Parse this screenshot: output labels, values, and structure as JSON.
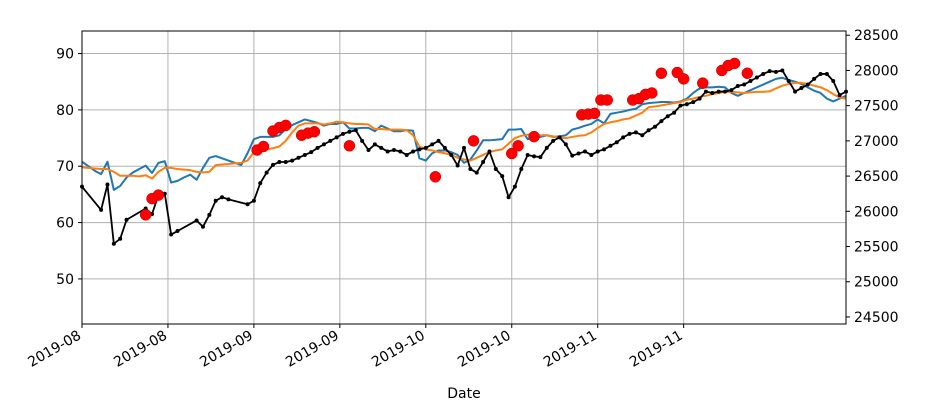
{
  "chart_data": {
    "type": "line",
    "title": "",
    "xlabel": "Date",
    "ylabel": "",
    "ylabel_right": "",
    "grid": true,
    "x_range": [
      0,
      120
    ],
    "ylim": [
      42,
      94
    ],
    "ylim_right": [
      24400,
      28560
    ],
    "x_ticks": [
      {
        "x": 0,
        "label": "2019-08"
      },
      {
        "x": 13.5,
        "label": "2019-08"
      },
      {
        "x": 27,
        "label": "2019-09"
      },
      {
        "x": 40.5,
        "label": "2019-09"
      },
      {
        "x": 54,
        "label": "2019-10"
      },
      {
        "x": 67.5,
        "label": "2019-10"
      },
      {
        "x": 81,
        "label": "2019-11"
      },
      {
        "x": 94.5,
        "label": "2019-11"
      }
    ],
    "y_ticks_left": [
      50,
      60,
      70,
      80,
      90
    ],
    "y_ticks_right": [
      24500,
      25000,
      25500,
      26000,
      26500,
      27000,
      27500,
      28000,
      28500
    ],
    "colors": {
      "blue": "#1f77b4",
      "orange": "#ff7f0e",
      "black": "#000000",
      "red": "#ff0000",
      "grid": "#b0b0b0"
    },
    "series": [
      {
        "axis": "left",
        "color": "#1f77b4",
        "x": [
          0,
          1,
          2,
          3,
          4,
          5,
          6,
          7,
          8,
          9,
          10,
          11,
          12,
          13,
          14,
          15,
          16,
          17,
          18,
          19,
          20,
          21,
          22,
          23,
          24,
          25,
          26,
          27,
          28,
          29,
          30,
          31,
          32,
          33,
          34,
          35,
          36,
          37,
          38,
          39,
          40,
          41,
          42,
          43,
          44,
          45,
          46,
          47,
          48,
          49,
          50,
          51,
          52,
          53,
          54,
          55,
          56,
          57,
          58,
          59,
          60,
          61,
          62,
          63,
          64,
          65,
          66,
          67,
          68,
          69,
          70,
          71,
          72,
          73,
          74,
          75,
          76,
          77,
          78,
          79,
          80,
          81,
          82,
          83,
          84,
          85,
          86,
          87,
          88,
          89,
          90,
          91,
          92,
          93,
          94,
          95,
          96,
          97,
          98,
          99,
          100,
          101,
          102,
          103,
          104,
          105,
          106,
          107,
          108,
          109,
          110,
          111,
          112,
          113,
          114,
          115,
          116,
          117,
          118,
          119,
          120
        ],
        "y": [
          70.8,
          70.0,
          69.2,
          68.6,
          70.8,
          65.8,
          66.5,
          68.0,
          68.9,
          69.5,
          70.1,
          68.8,
          70.6,
          70.9,
          67.1,
          67.4,
          68.0,
          68.5,
          67.6,
          69.7,
          71.5,
          71.8,
          71.4,
          71.0,
          70.6,
          70.2,
          72.3,
          74.8,
          75.2,
          75.2,
          75.2,
          75.5,
          76.6,
          77.3,
          77.8,
          78.3,
          78.0,
          77.7,
          77.2,
          77.5,
          77.5,
          77.8,
          76.7,
          76.7,
          76.8,
          76.8,
          76.2,
          77.2,
          76.7,
          76.2,
          76.2,
          76.4,
          76.3,
          71.4,
          71.0,
          72.3,
          72.8,
          72.8,
          72.5,
          72.0,
          70.6,
          71.2,
          72.8,
          74.6,
          74.6,
          74.7,
          74.8,
          76.5,
          76.5,
          76.6,
          74.8,
          75.2,
          75.2,
          75.5,
          75.2,
          75.3,
          75.5,
          76.5,
          76.8,
          77.2,
          77.5,
          78.3,
          77.6,
          79.3,
          79.5,
          79.7,
          80.0,
          80.2,
          81.0,
          81.2,
          81.3,
          81.4,
          81.4,
          81.3,
          81.5,
          82.0,
          83.0,
          83.8,
          84.0,
          84.0,
          84.1,
          84.0,
          83.0,
          82.5,
          83.0,
          83.5,
          84.0,
          84.5,
          85.0,
          85.5,
          85.7,
          85.3,
          85.0,
          84.6,
          84.0,
          83.4,
          83.0,
          82.0,
          81.5,
          82.0,
          82.5
        ]
      },
      {
        "axis": "left",
        "color": "#ff7f0e",
        "x": [
          0,
          1,
          2,
          3,
          4,
          5,
          6,
          7,
          8,
          9,
          10,
          11,
          12,
          13,
          14,
          15,
          16,
          17,
          18,
          19,
          20,
          21,
          22,
          23,
          24,
          25,
          26,
          27,
          28,
          29,
          30,
          31,
          32,
          33,
          34,
          35,
          36,
          37,
          38,
          39,
          40,
          41,
          42,
          43,
          44,
          45,
          46,
          47,
          48,
          49,
          50,
          51,
          52,
          53,
          54,
          55,
          56,
          57,
          58,
          59,
          60,
          61,
          62,
          63,
          64,
          65,
          66,
          67,
          68,
          69,
          70,
          71,
          72,
          73,
          74,
          75,
          76,
          77,
          78,
          79,
          80,
          81,
          82,
          83,
          84,
          85,
          86,
          87,
          88,
          89,
          90,
          91,
          92,
          93,
          94,
          95,
          96,
          97,
          98,
          99,
          100,
          101,
          102,
          103,
          104,
          105,
          106,
          107,
          108,
          109,
          110,
          111,
          112,
          113,
          114,
          115,
          116,
          117,
          118,
          119,
          120
        ],
        "y": [
          69.8,
          69.7,
          69.6,
          69.5,
          69.5,
          69.0,
          68.3,
          68.3,
          68.3,
          68.2,
          68.4,
          67.8,
          69.0,
          69.7,
          69.7,
          69.5,
          69.4,
          69.3,
          69.0,
          68.9,
          69.0,
          70.2,
          70.3,
          70.4,
          70.5,
          70.6,
          71.0,
          72.5,
          72.9,
          73.0,
          73.2,
          73.5,
          74.5,
          76.0,
          77.2,
          77.6,
          77.6,
          77.6,
          77.4,
          77.6,
          77.9,
          77.8,
          77.6,
          77.5,
          77.5,
          77.4,
          76.6,
          76.6,
          76.5,
          76.5,
          76.5,
          76.4,
          75.5,
          73.5,
          73.0,
          72.8,
          72.5,
          72.3,
          72.0,
          71.5,
          71.2,
          71.0,
          71.5,
          72.0,
          72.5,
          72.8,
          73.0,
          74.0,
          75.0,
          75.4,
          75.6,
          75.6,
          75.5,
          75.5,
          75.3,
          75.0,
          75.0,
          75.2,
          75.4,
          75.5,
          76.0,
          76.8,
          77.5,
          77.8,
          78.0,
          78.3,
          78.5,
          79.0,
          79.5,
          80.5,
          80.6,
          80.8,
          81.0,
          81.2,
          81.4,
          81.8,
          82.0,
          82.3,
          82.5,
          82.8,
          83.0,
          83.2,
          83.2,
          83.1,
          83.0,
          83.1,
          83.2,
          83.2,
          83.3,
          83.8,
          84.3,
          84.6,
          84.8,
          84.8,
          84.6,
          84.3,
          84.0,
          83.5,
          82.8,
          82.2,
          82.0
        ]
      },
      {
        "axis": "right",
        "color": "#000000",
        "x": [
          0,
          3,
          4,
          5,
          6,
          7,
          10,
          11,
          12,
          13,
          14,
          15,
          18,
          19,
          20,
          21,
          22,
          23,
          26,
          27,
          28,
          29,
          30,
          31,
          32,
          33,
          34,
          35,
          36,
          37,
          38,
          39,
          40,
          41,
          42,
          43,
          44,
          45,
          46,
          47,
          48,
          49,
          50,
          51,
          52,
          53,
          54,
          55,
          56,
          57,
          58,
          59,
          60,
          61,
          62,
          63,
          64,
          65,
          66,
          67,
          68,
          69,
          70,
          71,
          72,
          73,
          74,
          75,
          76,
          77,
          78,
          79,
          80,
          81,
          82,
          83,
          84,
          85,
          86,
          87,
          88,
          89,
          90,
          91,
          92,
          93,
          94,
          95,
          96,
          97,
          98,
          99,
          100,
          101,
          102,
          103,
          104,
          105,
          106,
          107,
          108,
          109,
          110,
          111,
          112,
          113,
          114,
          115,
          116,
          117,
          118,
          119,
          120
        ],
        "y": [
          26350,
          26020,
          26380,
          25540,
          25610,
          25880,
          26040,
          25960,
          26230,
          26250,
          25670,
          25720,
          25870,
          25780,
          25950,
          26150,
          26200,
          26170,
          26100,
          26150,
          26400,
          26550,
          26660,
          26700,
          26700,
          26720,
          26760,
          26800,
          26840,
          26900,
          26950,
          27000,
          27050,
          27100,
          27130,
          27150,
          27000,
          26870,
          26950,
          26900,
          26850,
          26870,
          26850,
          26800,
          26850,
          26880,
          26900,
          26950,
          27000,
          26900,
          26800,
          26650,
          26900,
          26600,
          26550,
          26700,
          26850,
          26600,
          26500,
          26200,
          26350,
          26600,
          26800,
          26780,
          26770,
          26900,
          27000,
          27050,
          26950,
          26790,
          26820,
          26850,
          26800,
          26850,
          26880,
          26930,
          26980,
          27050,
          27100,
          27120,
          27080,
          27150,
          27200,
          27280,
          27350,
          27400,
          27500,
          27520,
          27550,
          27600,
          27700,
          27680,
          27700,
          27700,
          27720,
          27780,
          27800,
          27850,
          27900,
          27950,
          27990,
          27980,
          28000,
          27850,
          27700,
          27750,
          27800,
          27880,
          27950,
          27950,
          27850,
          27650,
          27700
        ]
      }
    ],
    "markers": {
      "axis": "right",
      "color": "#ff0000",
      "points": [
        {
          "x": 10,
          "y": 25950
        },
        {
          "x": 11,
          "y": 26180
        },
        {
          "x": 12,
          "y": 26230
        },
        {
          "x": 27.5,
          "y": 26870
        },
        {
          "x": 28.5,
          "y": 26920
        },
        {
          "x": 30,
          "y": 27140
        },
        {
          "x": 31,
          "y": 27190
        },
        {
          "x": 32,
          "y": 27220
        },
        {
          "x": 34.5,
          "y": 27080
        },
        {
          "x": 35.5,
          "y": 27110
        },
        {
          "x": 36.5,
          "y": 27130
        },
        {
          "x": 42,
          "y": 26930
        },
        {
          "x": 55.5,
          "y": 26490
        },
        {
          "x": 61.5,
          "y": 27000
        },
        {
          "x": 67.5,
          "y": 26820
        },
        {
          "x": 68.5,
          "y": 26930
        },
        {
          "x": 71,
          "y": 27060
        },
        {
          "x": 78.5,
          "y": 27370
        },
        {
          "x": 79.5,
          "y": 27380
        },
        {
          "x": 80.5,
          "y": 27390
        },
        {
          "x": 81.5,
          "y": 27580
        },
        {
          "x": 82.5,
          "y": 27580
        },
        {
          "x": 86.5,
          "y": 27580
        },
        {
          "x": 87.5,
          "y": 27600
        },
        {
          "x": 88.5,
          "y": 27660
        },
        {
          "x": 89.5,
          "y": 27680
        },
        {
          "x": 91,
          "y": 27960
        },
        {
          "x": 93.5,
          "y": 27970
        },
        {
          "x": 94.5,
          "y": 27880
        },
        {
          "x": 97.5,
          "y": 27820
        },
        {
          "x": 100.5,
          "y": 28000
        },
        {
          "x": 101.5,
          "y": 28070
        },
        {
          "x": 102.5,
          "y": 28100
        },
        {
          "x": 104.5,
          "y": 27960
        }
      ]
    }
  }
}
